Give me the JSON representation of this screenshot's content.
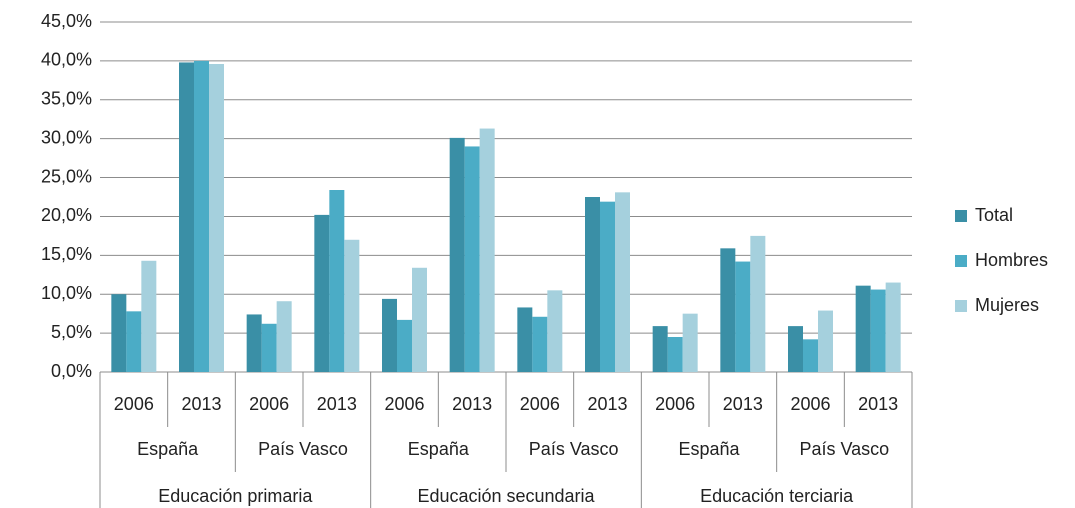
{
  "chart_data": {
    "type": "bar",
    "categories": [
      "2006",
      "2013",
      "2006",
      "2013",
      "2006",
      "2013",
      "2006",
      "2013",
      "2006",
      "2013",
      "2006",
      "2013"
    ],
    "regions": [
      "España",
      "País Vasco",
      "España",
      "País Vasco",
      "España",
      "País Vasco"
    ],
    "levels": [
      "Educación primaria",
      "Educación secundaria",
      "Educación terciaria"
    ],
    "series": [
      {
        "name": "Total",
        "color": "#3a8fa6",
        "values": [
          10.0,
          39.8,
          7.4,
          20.2,
          9.4,
          30.1,
          8.3,
          22.5,
          5.9,
          15.9,
          5.9,
          11.1
        ]
      },
      {
        "name": "Hombres",
        "color": "#4bacc6",
        "values": [
          7.8,
          40.0,
          6.2,
          23.4,
          6.7,
          29.0,
          7.1,
          21.9,
          4.5,
          14.2,
          4.2,
          10.6
        ]
      },
      {
        "name": "Mujeres",
        "color": "#a5d0dd",
        "values": [
          14.3,
          39.6,
          9.1,
          17.0,
          13.4,
          31.3,
          10.5,
          23.1,
          7.5,
          17.5,
          7.9,
          11.5
        ]
      }
    ],
    "ylim": [
      0,
      45
    ],
    "yticks": [
      {
        "value": 0,
        "label": "0,0%"
      },
      {
        "value": 5,
        "label": "5,0%"
      },
      {
        "value": 10,
        "label": "10,0%"
      },
      {
        "value": 15,
        "label": "15,0%"
      },
      {
        "value": 20,
        "label": "20,0%"
      },
      {
        "value": 25,
        "label": "25,0%"
      },
      {
        "value": 30,
        "label": "30,0%"
      },
      {
        "value": 35,
        "label": "35,0%"
      },
      {
        "value": 40,
        "label": "40,0%"
      },
      {
        "value": 45,
        "label": "45,0%"
      }
    ],
    "grid": true,
    "legend": "right"
  }
}
